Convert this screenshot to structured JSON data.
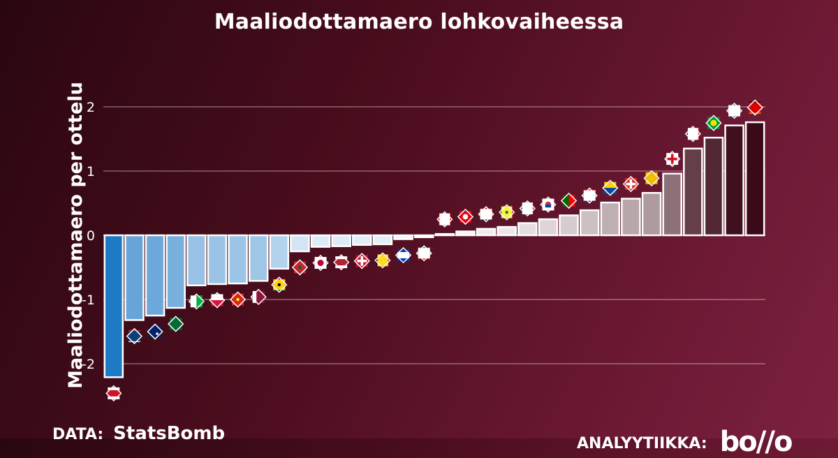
{
  "footer": {
    "data_label": "DATA:",
    "data_source": "StatsBomb",
    "analytics_label": "ANALYYTIIKKA:",
    "analytics_logo": "bo//o"
  },
  "chart_data": {
    "type": "bar",
    "title": "Maaliodottamaero lohkovaiheessa",
    "xlabel": "",
    "ylabel": "Maaliodottamaero per ottelu",
    "ylim": [
      -2.3,
      2.2
    ],
    "yticks": [
      -2,
      -1,
      0,
      1,
      2
    ],
    "grid": true,
    "categories": [
      "Costa Rica",
      "Serbia",
      "Australia",
      "Saudi-Arabia",
      "Wales",
      "Puola",
      "Vietnam",
      "Qatar",
      "Ghana",
      "Marokko",
      "Japani",
      "Yhdysvallat",
      "Tanska",
      "Belgia",
      "Uruguay",
      "Iran",
      "Kanada",
      "Tunisia",
      "Alankomaat",
      "Senegal",
      "Meksiko",
      "Etelä-Korea",
      "Portugali",
      "Kroatia",
      "Ecuador",
      "Sveitsi",
      "Espanja",
      "Englanti",
      "Ranska",
      "Brasilia",
      "Argentiina",
      "Saksa"
    ],
    "values": [
      -2.21,
      -1.32,
      -1.25,
      -1.13,
      -0.78,
      -0.76,
      -0.75,
      -0.71,
      -0.52,
      -0.25,
      -0.18,
      -0.17,
      -0.15,
      -0.14,
      -0.06,
      -0.03,
      0.02,
      0.06,
      0.1,
      0.13,
      0.19,
      0.25,
      0.31,
      0.39,
      0.51,
      0.57,
      0.66,
      0.96,
      1.35,
      1.52,
      1.71,
      1.76
    ],
    "flags": [
      "flag-costa-rica",
      "flag-serbia",
      "flag-australia",
      "flag-saudi-arabia",
      "flag-wales",
      "flag-poland",
      "flag-vietnam",
      "flag-qatar",
      "flag-ghana",
      "flag-morocco",
      "flag-japan",
      "flag-usa",
      "flag-denmark",
      "flag-belgium",
      "flag-uruguay",
      "flag-iran",
      "flag-canada",
      "flag-tunisia",
      "flag-netherlands",
      "flag-senegal",
      "flag-mexico",
      "flag-south-korea",
      "flag-portugal",
      "flag-croatia",
      "flag-ecuador",
      "flag-switzerland",
      "flag-spain",
      "flag-england",
      "flag-france",
      "flag-brazil",
      "flag-argentina",
      "flag-germany"
    ],
    "colors": {
      "negative_strong": "#1f7ac6",
      "negative_light": "#ffffff",
      "positive_light": "#ffffff",
      "positive_strong": "#3a0a18"
    }
  }
}
